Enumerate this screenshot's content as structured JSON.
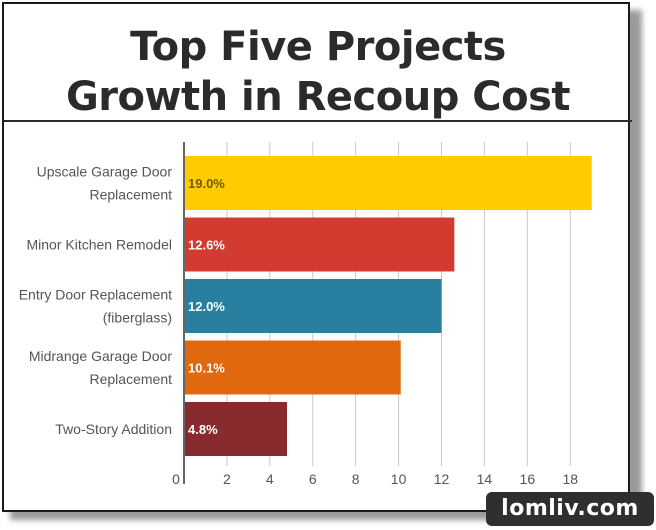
{
  "title_lines": [
    "Top Five Projects",
    "Growth in Recoup Cost"
  ],
  "watermark": "lomliv.com",
  "chart_data": {
    "type": "bar",
    "orientation": "horizontal",
    "title": "Top Five Projects Growth in Recoup Cost",
    "categories": [
      [
        "Upscale Garage Door",
        "Replacement"
      ],
      [
        "Minor Kitchen Remodel"
      ],
      [
        "Entry Door Replacement",
        "(fiberglass)"
      ],
      [
        "Midrange Garage Door",
        "Replacement"
      ],
      [
        "Two-Story Addition"
      ]
    ],
    "values": [
      19.0,
      12.6,
      12.0,
      10.1,
      4.8
    ],
    "value_labels": [
      "19.0%",
      "12.6%",
      "12.0%",
      "10.1%",
      "4.8%"
    ],
    "bar_colors": [
      "#FECC00",
      "#D13B30",
      "#287FA0",
      "#E0690F",
      "#882B2E"
    ],
    "xlim": [
      0,
      19.2
    ],
    "xticks": [
      0,
      2,
      4,
      6,
      8,
      10,
      12,
      14,
      16,
      18
    ],
    "grid": true,
    "legend": "none",
    "xlabel": "",
    "ylabel": ""
  }
}
